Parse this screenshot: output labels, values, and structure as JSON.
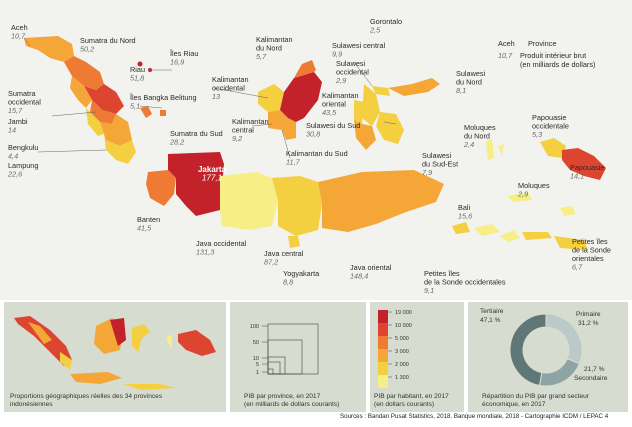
{
  "map": {
    "legend_key": {
      "name": "Aceh",
      "region_label": "Province",
      "value": "10,7",
      "value_label_line1": "Produit intérieur brut",
      "value_label_line2": "(en milliards de dollars)"
    },
    "provinces": [
      {
        "id": "aceh",
        "name": [
          "Aceh"
        ],
        "value": "10,7"
      },
      {
        "id": "sumut",
        "name": [
          "Sumatra du Nord"
        ],
        "value": "50,2"
      },
      {
        "id": "kepri",
        "name": [
          "Îles Riau"
        ],
        "value": "16,9"
      },
      {
        "id": "riau",
        "name": [
          "Riau"
        ],
        "value": "51,8"
      },
      {
        "id": "sumbar",
        "name": [
          "Sumatra",
          "occidental"
        ],
        "value": "15,7"
      },
      {
        "id": "jambi",
        "name": [
          "Jambi"
        ],
        "value": "14"
      },
      {
        "id": "babel",
        "name": [
          "Îles Bangka Belitung"
        ],
        "value": "5,1"
      },
      {
        "id": "sumsel",
        "name": [
          "Sumatra du Sud"
        ],
        "value": "28,2"
      },
      {
        "id": "bengkulu",
        "name": [
          "Bengkulu"
        ],
        "value": "4,4"
      },
      {
        "id": "lampung",
        "name": [
          "Lampung"
        ],
        "value": "22,6"
      },
      {
        "id": "banten",
        "name": [
          "Banten"
        ],
        "value": "41,5"
      },
      {
        "id": "jakarta",
        "name": [
          "Jakarta"
        ],
        "value": "177,1"
      },
      {
        "id": "jabar",
        "name": [
          "Java occidental"
        ],
        "value": "131,3"
      },
      {
        "id": "jateng",
        "name": [
          "Java central"
        ],
        "value": "87,2"
      },
      {
        "id": "yogya",
        "name": [
          "Yogyakarta"
        ],
        "value": "8,8"
      },
      {
        "id": "jatim",
        "name": [
          "Java oriental"
        ],
        "value": "148,4"
      },
      {
        "id": "bali",
        "name": [
          "Bali"
        ],
        "value": "15,6"
      },
      {
        "id": "ntb",
        "name": [
          "Petites îles",
          "de la Sonde occidentales"
        ],
        "value": "9,1"
      },
      {
        "id": "ntt",
        "name": [
          "Petites îles",
          "de la Sonde",
          "orientales"
        ],
        "value": "6,7"
      },
      {
        "id": "kalbar",
        "name": [
          "Kalimantan",
          "occidental"
        ],
        "value": "13"
      },
      {
        "id": "kalteng",
        "name": [
          "Kalimantan",
          "central"
        ],
        "value": "9,2"
      },
      {
        "id": "kalsel",
        "name": [
          "Kalimantan du Sud"
        ],
        "value": "11,7"
      },
      {
        "id": "kaltim",
        "name": [
          "Kalimantan",
          "oriental"
        ],
        "value": "43,5"
      },
      {
        "id": "kaltara",
        "name": [
          "Kalimantan",
          "du Nord"
        ],
        "value": "5,7"
      },
      {
        "id": "gorontalo",
        "name": [
          "Gorontalo"
        ],
        "value": "2,5"
      },
      {
        "id": "sulbar",
        "name": [
          "Sulawesi",
          "occidental"
        ],
        "value": "2,9"
      },
      {
        "id": "sulteng",
        "name": [
          "Sulawesi central"
        ],
        "value": "9,9"
      },
      {
        "id": "sulut",
        "name": [
          "Sulawesi",
          "du Nord"
        ],
        "value": "8,1"
      },
      {
        "id": "sulsel",
        "name": [
          "Sulawesi du Sud"
        ],
        "value": "30,8"
      },
      {
        "id": "sultra",
        "name": [
          "Sulawesi",
          "du Sud-Est"
        ],
        "value": "7,9"
      },
      {
        "id": "malut",
        "name": [
          "Moluques",
          "du Nord"
        ],
        "value": "2,4"
      },
      {
        "id": "maluku",
        "name": [
          "Moluques"
        ],
        "value": "2,9"
      },
      {
        "id": "pabar",
        "name": [
          "Papouasie",
          "occidentale"
        ],
        "value": "5,3"
      },
      {
        "id": "papua",
        "name": [
          "Papouasie"
        ],
        "value": "14,1"
      }
    ]
  },
  "panels": {
    "proportions": {
      "caption": [
        "Proportions géographiques réelles des 34 provinces",
        "indonésiennes"
      ]
    },
    "pib_province": {
      "caption": [
        "PIB par province, en 2017",
        "(en milliards de dollars courants)"
      ],
      "scale": [
        "100",
        "50",
        "10",
        "5",
        "1"
      ]
    },
    "pib_habitant": {
      "caption": [
        "PIB par habitant, en 2017",
        "(en dollars courants)"
      ],
      "scale": [
        "19 000",
        "10 000",
        "5 000",
        "3 000",
        "2 000",
        "1 300"
      ],
      "colors": [
        "#c4222a",
        "#de4530",
        "#ee7a33",
        "#f4a637",
        "#f4cf3f",
        "#f7ee86"
      ]
    },
    "repartition": {
      "caption": [
        "Répartition du PIB par grand secteur",
        "économique, en 2017"
      ],
      "sectors": [
        {
          "name": "Tertiaire",
          "percent": "47,1 %",
          "value": 47.1,
          "color": "#5f7777"
        },
        {
          "name": "Primaire",
          "percent": "31,2 %",
          "value": 31.2,
          "color": "#bcc9c9"
        },
        {
          "name": "Secondaire",
          "percent": "21,7 %",
          "value": 21.7,
          "color": "#8ea3a3"
        }
      ]
    }
  },
  "source": "Sources : Bandan Pusat Statistics, 2018. Banque mondiale, 2018 - Cartographie ICDM / LEPAC",
  "page_number": "4"
}
